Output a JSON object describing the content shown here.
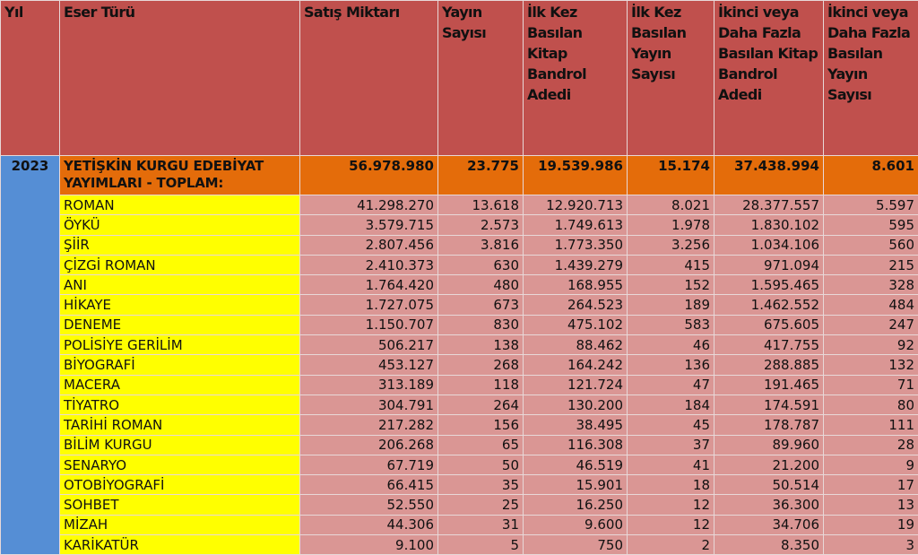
{
  "columns": [
    "Yıl",
    "Eser Türü",
    "Satış Miktarı",
    "Yayın Sayısı",
    "İlk Kez Basılan Kitap Bandrol Adedi",
    "İlk Kez Basılan Yayın Sayısı",
    "İkinci veya Daha Fazla Basılan Kitap Bandrol Adedi",
    "İkinci veya Daha Fazla Basılan Yayın Sayısı"
  ],
  "year": "2023",
  "total": {
    "name": "YETİŞKİN KURGU EDEBİYAT YAYIMLARI - TOPLAM:",
    "values": [
      "56.978.980",
      "23.775",
      "19.539.986",
      "15.174",
      "37.438.994",
      "8.601"
    ]
  },
  "rows": [
    {
      "name": "ROMAN",
      "values": [
        "41.298.270",
        "13.618",
        "12.920.713",
        "8.021",
        "28.377.557",
        "5.597"
      ]
    },
    {
      "name": "ÖYKÜ",
      "values": [
        "3.579.715",
        "2.573",
        "1.749.613",
        "1.978",
        "1.830.102",
        "595"
      ]
    },
    {
      "name": "ŞİİR",
      "values": [
        "2.807.456",
        "3.816",
        "1.773.350",
        "3.256",
        "1.034.106",
        "560"
      ]
    },
    {
      "name": "ÇİZGİ ROMAN",
      "values": [
        "2.410.373",
        "630",
        "1.439.279",
        "415",
        "971.094",
        "215"
      ]
    },
    {
      "name": "ANI",
      "values": [
        "1.764.420",
        "480",
        "168.955",
        "152",
        "1.595.465",
        "328"
      ]
    },
    {
      "name": "HİKAYE",
      "values": [
        "1.727.075",
        "673",
        "264.523",
        "189",
        "1.462.552",
        "484"
      ]
    },
    {
      "name": "DENEME",
      "values": [
        "1.150.707",
        "830",
        "475.102",
        "583",
        "675.605",
        "247"
      ]
    },
    {
      "name": "POLİSİYE GERİLİM",
      "values": [
        "506.217",
        "138",
        "88.462",
        "46",
        "417.755",
        "92"
      ]
    },
    {
      "name": "BİYOGRAFİ",
      "values": [
        "453.127",
        "268",
        "164.242",
        "136",
        "288.885",
        "132"
      ]
    },
    {
      "name": "MACERA",
      "values": [
        "313.189",
        "118",
        "121.724",
        "47",
        "191.465",
        "71"
      ]
    },
    {
      "name": "TİYATRO",
      "values": [
        "304.791",
        "264",
        "130.200",
        "184",
        "174.591",
        "80"
      ]
    },
    {
      "name": "TARİHİ ROMAN",
      "values": [
        "217.282",
        "156",
        "38.495",
        "45",
        "178.787",
        "111"
      ]
    },
    {
      "name": "BİLİM KURGU",
      "values": [
        "206.268",
        "65",
        "116.308",
        "37",
        "89.960",
        "28"
      ]
    },
    {
      "name": "SENARYO",
      "values": [
        "67.719",
        "50",
        "46.519",
        "41",
        "21.200",
        "9"
      ]
    },
    {
      "name": "OTOBİYOGRAFİ",
      "values": [
        "66.415",
        "35",
        "15.901",
        "18",
        "50.514",
        "17"
      ]
    },
    {
      "name": "SOHBET",
      "values": [
        "52.550",
        "25",
        "16.250",
        "12",
        "36.300",
        "13"
      ]
    },
    {
      "name": "MİZAH",
      "values": [
        "44.306",
        "31",
        "9.600",
        "12",
        "34.706",
        "19"
      ]
    },
    {
      "name": "KARİKATÜR",
      "values": [
        "9.100",
        "5",
        "750",
        "2",
        "8.350",
        "3"
      ]
    }
  ],
  "colors": {
    "header": "#c0504d",
    "total": "#e46c0a",
    "name_cell": "#ffff00",
    "value_cell": "#da9694",
    "year_cell": "#558ed5"
  }
}
